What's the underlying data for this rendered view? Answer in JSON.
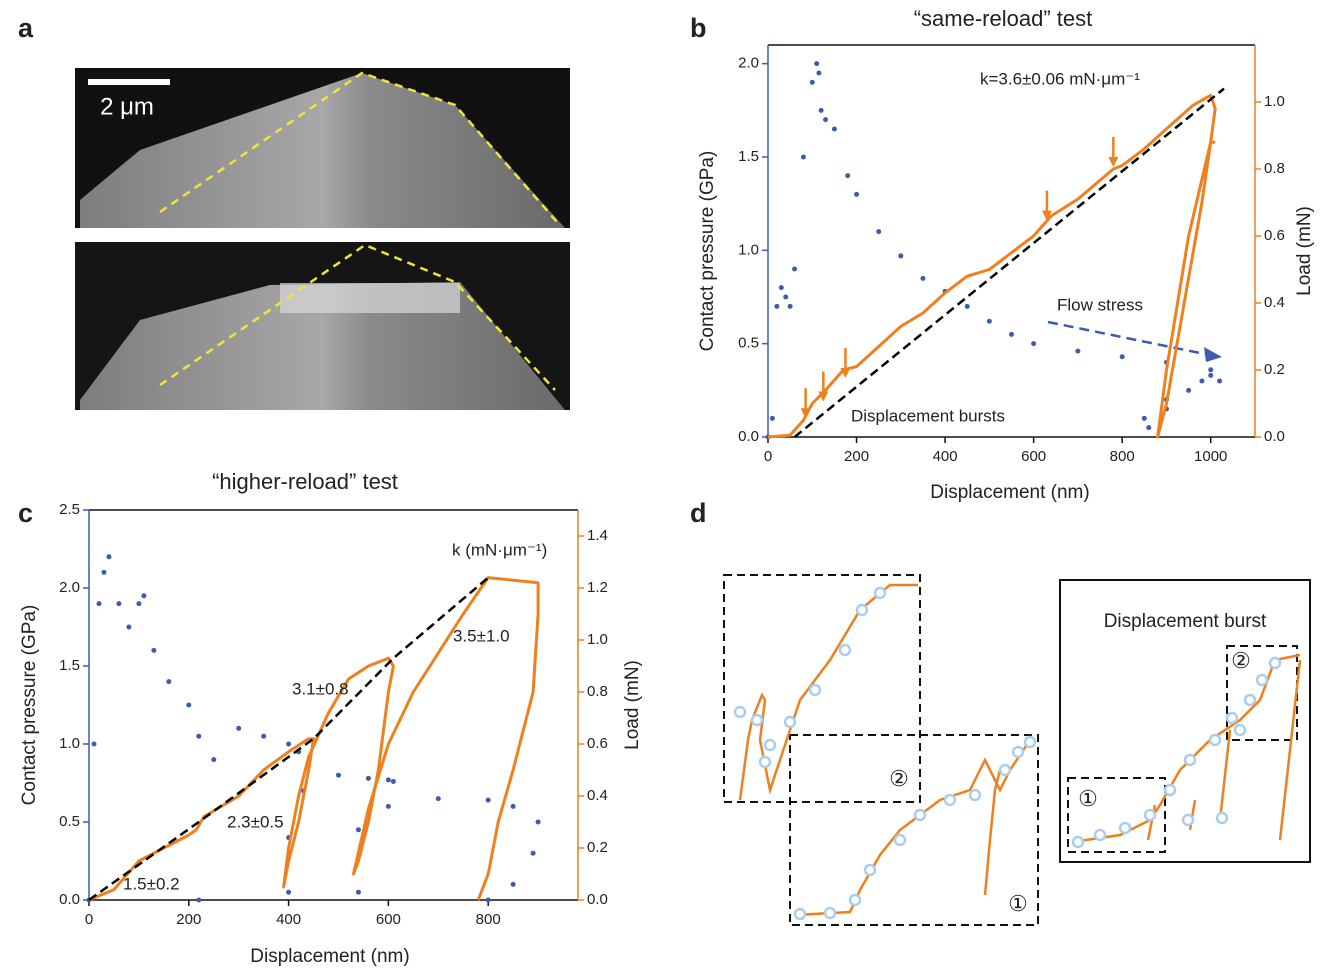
{
  "panel_labels": [
    "a",
    "b",
    "c",
    "d"
  ],
  "panel_a": {
    "scale_bar": "2 μm"
  },
  "chart_data": [
    {
      "type": "line",
      "title": "“same-reload” test",
      "xlabel": "Displacement (nm)",
      "ylabel": "Contact pressure (GPa)",
      "y2label": "Load (mN)",
      "xlim": [
        0,
        1100
      ],
      "ylim": [
        0,
        2.1
      ],
      "y2lim": [
        0,
        1.17
      ],
      "xticks": [
        0,
        200,
        400,
        600,
        800,
        1000
      ],
      "yticks": [
        {
          "value": 0,
          "label": "0.0"
        },
        0.5,
        {
          "value": 1,
          "label": "1.0"
        },
        1.5,
        {
          "value": 2,
          "label": "2.0"
        }
      ],
      "y2ticks": [
        {
          "value": 0,
          "label": "0.0"
        },
        0.2,
        0.4,
        0.6,
        0.8,
        {
          "value": 1,
          "label": "1.0"
        }
      ],
      "annotations": [
        "k=3.6±0.06 mN·μm⁻¹",
        "Flow stress",
        "Displacement bursts"
      ],
      "series": [
        {
          "style": "dots",
          "axis": "y",
          "color": "#3f5bb0",
          "x": [
            0,
            10,
            20,
            30,
            40,
            50,
            60,
            80,
            100,
            110,
            115,
            120,
            130,
            150,
            180,
            200,
            250,
            300,
            350,
            400,
            450,
            500,
            550,
            600,
            700,
            800,
            900,
            1000,
            1020,
            1000,
            950,
            900,
            860,
            850,
            900,
            980
          ],
          "values": [
            0,
            0.1,
            0.7,
            0.8,
            0.75,
            0.7,
            0.9,
            1.5,
            1.9,
            2.0,
            1.95,
            1.75,
            1.7,
            1.65,
            1.4,
            1.3,
            1.1,
            0.97,
            0.85,
            0.78,
            0.7,
            0.62,
            0.55,
            0.5,
            0.46,
            0.43,
            0.4,
            0.36,
            0.3,
            0.33,
            0.25,
            0.15,
            0.05,
            0.1,
            0.2,
            0.3
          ]
        },
        {
          "style": "line",
          "axis": "y2",
          "color": "#f07f1e",
          "x": [
            0,
            50,
            80,
            100,
            130,
            170,
            200,
            250,
            300,
            350,
            400,
            450,
            500,
            550,
            600,
            640,
            700,
            780,
            800,
            850,
            900,
            960,
            1000,
            1010,
            1000,
            980,
            940,
            900,
            880,
            900,
            950,
            1000,
            1010
          ],
          "values": [
            0,
            0.005,
            0.05,
            0.1,
            0.14,
            0.2,
            0.21,
            0.27,
            0.33,
            0.37,
            0.43,
            0.48,
            0.5,
            0.55,
            0.6,
            0.66,
            0.71,
            0.8,
            0.81,
            0.86,
            0.92,
            0.99,
            1.02,
            0.98,
            0.88,
            0.7,
            0.4,
            0.1,
            0,
            0.2,
            0.6,
            0.88,
            0.88
          ]
        },
        {
          "style": "dashed",
          "axis": "y2",
          "color": "#000000",
          "x": [
            60,
            1030
          ],
          "values": [
            0,
            1.04
          ]
        },
        {
          "style": "arrows",
          "axis": "y2",
          "color": "#f07f1e",
          "x": [
            85,
            125,
            175,
            630,
            780
          ],
          "values": [
            0.05,
            0.1,
            0.17,
            0.64,
            0.8
          ]
        }
      ]
    },
    {
      "type": "line",
      "title": "“higher-reload” test",
      "xlabel": "Displacement (nm)",
      "ylabel": "Contact pressure (GPa)",
      "y2label": "Load (mN)",
      "xlim": [
        0,
        980
      ],
      "ylim": [
        0,
        2.5
      ],
      "y2lim": [
        0,
        1.5
      ],
      "xticks": [
        0,
        200,
        400,
        600,
        800
      ],
      "yticks": [
        {
          "value": 0,
          "label": "0.0"
        },
        0.5,
        {
          "value": 1,
          "label": "1.0"
        },
        1.5,
        {
          "value": 2,
          "label": "2.0"
        },
        2.5
      ],
      "y2ticks": [
        {
          "value": 0,
          "label": "0.0"
        },
        0.2,
        0.4,
        0.6,
        0.8,
        {
          "value": 1,
          "label": "1.0"
        },
        1.2,
        1.4
      ],
      "annotations": [
        "k (mN·μm⁻¹)",
        "3.5±1.0",
        "3.1±0.8",
        "2.3±0.5",
        "1.5±0.2"
      ],
      "series": [
        {
          "style": "dots",
          "axis": "y",
          "color": "#3f5bb0",
          "x": [
            0,
            10,
            20,
            30,
            40,
            60,
            80,
            100,
            110,
            130,
            160,
            200,
            220,
            220,
            250,
            300,
            350,
            400,
            420,
            400,
            400,
            430,
            500,
            560,
            600,
            610,
            540,
            540,
            600,
            700,
            800,
            850,
            900,
            890,
            850,
            800
          ],
          "values": [
            0,
            1,
            1.9,
            2.1,
            2.2,
            1.9,
            1.75,
            1.9,
            1.95,
            1.6,
            1.4,
            1.25,
            1.05,
            0,
            0.9,
            1.1,
            1.05,
            1.0,
            0.95,
            0.05,
            0.4,
            0.7,
            0.8,
            0.78,
            0.77,
            0.76,
            0.05,
            0.45,
            0.6,
            0.65,
            0.64,
            0.6,
            0.5,
            0.3,
            0.1,
            0
          ]
        },
        {
          "style": "line",
          "axis": "y2",
          "color": "#f07f1e",
          "x": [
            0,
            50,
            100,
            150,
            200,
            215,
            230,
            300,
            350,
            400,
            440,
            450,
            440,
            420,
            400,
            390,
            400,
            420,
            440,
            480,
            520,
            560,
            600,
            610,
            600,
            580,
            560,
            540,
            530,
            560,
            600,
            650,
            700,
            750,
            800,
            850,
            900,
            900,
            890,
            850,
            820,
            800,
            780
          ],
          "values": [
            0,
            0.04,
            0.15,
            0.2,
            0.25,
            0.27,
            0.32,
            0.4,
            0.5,
            0.57,
            0.62,
            0.62,
            0.5,
            0.3,
            0.15,
            0.05,
            0.2,
            0.4,
            0.55,
            0.72,
            0.85,
            0.9,
            0.93,
            0.9,
            0.8,
            0.5,
            0.3,
            0.15,
            0.1,
            0.35,
            0.6,
            0.8,
            0.95,
            1.1,
            1.24,
            1.23,
            1.22,
            1.1,
            0.8,
            0.5,
            0.3,
            0.1,
            0
          ]
        },
        {
          "style": "dashed",
          "axis": "y2",
          "color": "#000000",
          "x": [
            0,
            220,
            450,
            610,
            800
          ],
          "values": [
            0,
            0.3,
            0.62,
            0.93,
            1.24
          ]
        }
      ]
    }
  ],
  "panel_d": {
    "title": "Displacement burst",
    "markers": [
      "②",
      "①",
      "①",
      "②"
    ]
  }
}
